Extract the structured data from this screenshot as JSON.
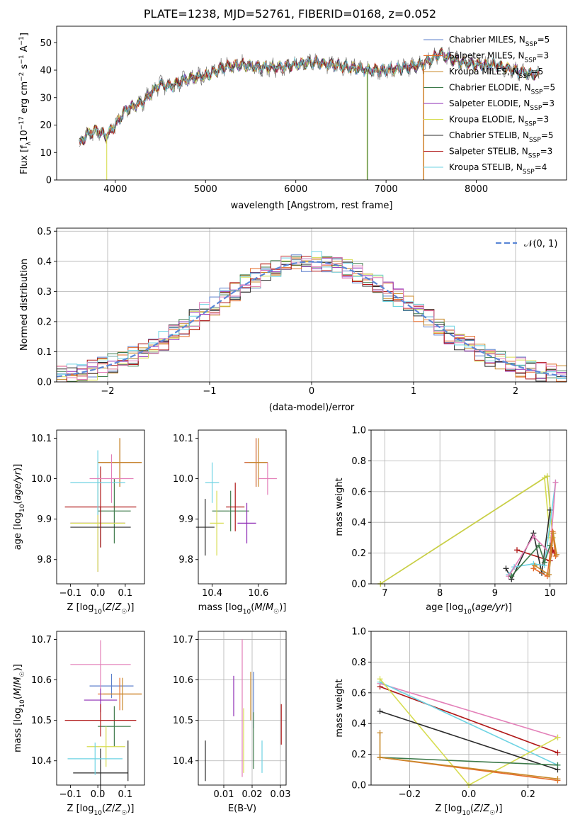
{
  "figure": {
    "title": "PLATE=1238, MJD=52761, FIBERID=0168, z=0.052"
  },
  "chart_data": [
    {
      "id": "spectrum",
      "type": "line",
      "xlabel": "wavelength [Angstrom, rest frame]",
      "ylabel_parts": [
        "Flux [f",
        "λ",
        "10",
        "−17",
        " erg cm",
        "−2",
        " s",
        "−1",
        " A",
        "−1",
        "]"
      ],
      "xlim": [
        3350,
        9000
      ],
      "ylim": [
        0,
        56
      ],
      "xticks": [
        4000,
        5000,
        6000,
        7000,
        8000
      ],
      "yticks": [
        0,
        10,
        20,
        30,
        40,
        50
      ],
      "legend_position": "top-right",
      "spectrum_anchors": [
        [
          3600,
          13
        ],
        [
          3700,
          17
        ],
        [
          3800,
          18
        ],
        [
          3900,
          16
        ],
        [
          4000,
          20
        ],
        [
          4100,
          25
        ],
        [
          4200,
          27
        ],
        [
          4300,
          28
        ],
        [
          4400,
          32
        ],
        [
          4500,
          35
        ],
        [
          4600,
          34
        ],
        [
          4800,
          37
        ],
        [
          5000,
          38
        ],
        [
          5200,
          41
        ],
        [
          5400,
          42
        ],
        [
          5600,
          41
        ],
        [
          5800,
          41
        ],
        [
          6000,
          42
        ],
        [
          6200,
          43
        ],
        [
          6400,
          42
        ],
        [
          6600,
          41
        ],
        [
          6800,
          40
        ],
        [
          7000,
          40
        ],
        [
          7200,
          41
        ],
        [
          7400,
          42
        ],
        [
          7600,
          46
        ],
        [
          7800,
          43
        ],
        [
          8000,
          42
        ],
        [
          8200,
          42
        ],
        [
          8400,
          40
        ],
        [
          8700,
          38
        ]
      ],
      "series": [
        {
          "name": "Chabrier MILES, N",
          "sub": "SSP",
          "suffix": "=5",
          "color": "#5b7fcb"
        },
        {
          "name": "Salpeter MILES, N",
          "sub": "SSP",
          "suffix": "=3",
          "color": "#e56c2b"
        },
        {
          "name": "Kroupa MILES, N",
          "sub": "SSP",
          "suffix": "=5",
          "color": "#c8892a"
        },
        {
          "name": "Chabrier ELODIE, N",
          "sub": "SSP",
          "suffix": "=5",
          "color": "#3d7a4a"
        },
        {
          "name": "Salpeter ELODIE, N",
          "sub": "SSP",
          "suffix": "=3",
          "color": "#8e2bb5"
        },
        {
          "name": "Kroupa ELODIE, N",
          "sub": "SSP",
          "suffix": "=3",
          "color": "#d7dd52"
        },
        {
          "name": "Chabrier STELIB, N",
          "sub": "SSP",
          "suffix": "=5",
          "color": "#2b2b2b"
        },
        {
          "name": "Salpeter STELIB, N",
          "sub": "SSP",
          "suffix": "=3",
          "color": "#b01818"
        },
        {
          "name": "Kroupa STELIB, N",
          "sub": "SSP",
          "suffix": "=4",
          "color": "#6dd3e3"
        }
      ]
    },
    {
      "id": "residuals",
      "type": "histogram",
      "xlabel": "(data-model)/error",
      "ylabel": "Normed distribution",
      "xlim": [
        -2.5,
        2.5
      ],
      "ylim": [
        0,
        0.51
      ],
      "xticks": [
        -2,
        -1,
        0,
        1,
        2
      ],
      "yticks": [
        0.0,
        0.1,
        0.2,
        0.3,
        0.4,
        0.5
      ],
      "grid": true,
      "bin_width": 0.1,
      "reference_curve": {
        "name": "𝒩(0, 1)",
        "mean": 0,
        "sigma": 1,
        "color": "#5b87d6",
        "style": "dashed"
      },
      "legend_position": "top-right",
      "series_colors": [
        "#5b7fcb",
        "#e56c2b",
        "#c8892a",
        "#3d7a4a",
        "#8e2bb5",
        "#d7dd52",
        "#2b2b2b",
        "#b01818",
        "#6dd3e3",
        "#e37fb8"
      ]
    },
    {
      "id": "age-vs-Z",
      "type": "scatter",
      "style": "crosshair-errorbars",
      "xlabel": "Z [log10(Z/Z☉)]",
      "ylabel": "age  [log10(age/yr)]",
      "xlim": [
        -0.15,
        0.17
      ],
      "ylim": [
        9.74,
        10.12
      ],
      "xticks": [
        -0.1,
        0.0,
        0.1
      ],
      "yticks": [
        9.8,
        9.9,
        10.0,
        10.1
      ],
      "points": [
        {
          "x": 0.08,
          "y": 10.04,
          "xerr": 0.08,
          "yerr": 0.06,
          "color": "#5b7fcb"
        },
        {
          "x": 0.08,
          "y": 10.04,
          "xerr": 0.08,
          "yerr": 0.06,
          "color": "#e56c2b"
        },
        {
          "x": 0.08,
          "y": 10.04,
          "xerr": 0.08,
          "yerr": 0.06,
          "color": "#c8892a"
        },
        {
          "x": 0.06,
          "y": 9.92,
          "xerr": 0.06,
          "yerr": 0.08,
          "color": "#3d7a4a"
        },
        {
          "x": 0.0,
          "y": 9.89,
          "xerr": 0.1,
          "yerr": 0.12,
          "color": "#8e2bb5"
        },
        {
          "x": 0.0,
          "y": 9.89,
          "xerr": 0.1,
          "yerr": 0.12,
          "color": "#d7dd52"
        },
        {
          "x": 0.01,
          "y": 9.88,
          "xerr": 0.11,
          "yerr": 0.05,
          "color": "#2b2b2b"
        },
        {
          "x": 0.01,
          "y": 9.93,
          "xerr": 0.13,
          "yerr": 0.1,
          "color": "#b01818"
        },
        {
          "x": 0.0,
          "y": 9.99,
          "xerr": 0.1,
          "yerr": 0.08,
          "color": "#6dd3e3"
        },
        {
          "x": 0.05,
          "y": 10.0,
          "xerr": 0.08,
          "yerr": 0.06,
          "color": "#e37fb8"
        }
      ]
    },
    {
      "id": "age-vs-mass",
      "type": "scatter",
      "style": "crosshair-errorbars",
      "xlabel": "mass [log10(M/M☉)]",
      "xlim": [
        10.34,
        10.72
      ],
      "ylim": [
        9.74,
        10.12
      ],
      "xticks": [
        10.4,
        10.6
      ],
      "yticks": [
        9.8,
        9.9,
        10.0,
        10.1
      ],
      "points": [
        {
          "x": 10.59,
          "y": 10.04,
          "xerr": 0.05,
          "yerr": 0.06,
          "color": "#5b7fcb"
        },
        {
          "x": 10.59,
          "y": 10.04,
          "xerr": 0.05,
          "yerr": 0.06,
          "color": "#e56c2b"
        },
        {
          "x": 10.6,
          "y": 10.04,
          "xerr": 0.04,
          "yerr": 0.06,
          "color": "#c8892a"
        },
        {
          "x": 10.48,
          "y": 9.92,
          "xerr": 0.08,
          "yerr": 0.05,
          "color": "#3d7a4a"
        },
        {
          "x": 10.55,
          "y": 9.89,
          "xerr": 0.04,
          "yerr": 0.05,
          "color": "#8e2bb5"
        },
        {
          "x": 10.42,
          "y": 9.89,
          "xerr": 0.03,
          "yerr": 0.08,
          "color": "#d7dd52"
        },
        {
          "x": 10.37,
          "y": 9.88,
          "xerr": 0.04,
          "yerr": 0.07,
          "color": "#2b2b2b"
        },
        {
          "x": 10.5,
          "y": 9.93,
          "xerr": 0.04,
          "yerr": 0.06,
          "color": "#b01818"
        },
        {
          "x": 10.4,
          "y": 9.99,
          "xerr": 0.03,
          "yerr": 0.05,
          "color": "#6dd3e3"
        },
        {
          "x": 10.64,
          "y": 10.0,
          "xerr": 0.04,
          "yerr": 0.04,
          "color": "#e37fb8"
        }
      ]
    },
    {
      "id": "massweight-vs-age",
      "type": "line",
      "markers": "plus",
      "xlabel": "age  [log10(age/yr)]",
      "ylabel": "mass weight",
      "xlim": [
        6.75,
        10.3
      ],
      "ylim": [
        0,
        1
      ],
      "xticks": [
        7,
        8,
        9,
        10
      ],
      "yticks": [
        0.0,
        0.2,
        0.4,
        0.6,
        0.8,
        1.0
      ],
      "grid": true,
      "series": [
        {
          "color": "#d7dd52",
          "points": [
            [
              6.92,
              0.0
            ],
            [
              9.9,
              0.69
            ],
            [
              10.0,
              0.3
            ]
          ]
        },
        {
          "color": "#c8ce48",
          "points": [
            [
              6.92,
              0.0
            ],
            [
              9.95,
              0.7
            ],
            [
              10.05,
              0.3
            ]
          ]
        },
        {
          "color": "#b01818",
          "points": [
            [
              9.4,
              0.22
            ],
            [
              10.0,
              0.15
            ],
            [
              10.05,
              0.22
            ],
            [
              10.08,
              0.2
            ]
          ]
        },
        {
          "color": "#2b2b2b",
          "points": [
            [
              9.2,
              0.1
            ],
            [
              9.3,
              0.03
            ],
            [
              9.7,
              0.33
            ],
            [
              9.85,
              0.07
            ],
            [
              10.0,
              0.48
            ]
          ]
        },
        {
          "color": "#6dd3e3",
          "points": [
            [
              9.25,
              0.06
            ],
            [
              9.35,
              0.11
            ],
            [
              9.7,
              0.13
            ],
            [
              9.9,
              0.12
            ],
            [
              10.1,
              0.66
            ]
          ]
        },
        {
          "color": "#e37fb8",
          "points": [
            [
              9.25,
              0.05
            ],
            [
              9.7,
              0.31
            ],
            [
              10.0,
              0.2
            ],
            [
              10.1,
              0.66
            ]
          ]
        },
        {
          "color": "#3d7a4a",
          "points": [
            [
              9.3,
              0.05
            ],
            [
              9.8,
              0.25
            ],
            [
              9.9,
              0.14
            ],
            [
              10.0,
              0.25
            ]
          ]
        },
        {
          "color": "#e56c2b",
          "points": [
            [
              9.7,
              0.1
            ],
            [
              9.95,
              0.05
            ],
            [
              10.05,
              0.34
            ],
            [
              10.1,
              0.18
            ]
          ]
        },
        {
          "color": "#c8892a",
          "points": [
            [
              9.72,
              0.12
            ],
            [
              9.98,
              0.06
            ],
            [
              10.06,
              0.33
            ],
            [
              10.12,
              0.19
            ]
          ]
        }
      ]
    },
    {
      "id": "mass-vs-Z",
      "type": "scatter",
      "style": "crosshair-errorbars",
      "xlabel": "Z [log10(Z/Z☉)]",
      "ylabel": "mass [log10(M/M☉)]",
      "xlim": [
        -0.15,
        0.17
      ],
      "ylim": [
        10.34,
        10.72
      ],
      "xticks": [
        -0.1,
        0.0,
        0.1
      ],
      "yticks": [
        10.4,
        10.5,
        10.6,
        10.7
      ],
      "points": [
        {
          "x": 0.05,
          "y": 10.585,
          "xerr": 0.08,
          "yerr": 0.03,
          "color": "#5b7fcb"
        },
        {
          "x": 0.08,
          "y": 10.565,
          "xerr": 0.08,
          "yerr": 0.04,
          "color": "#e56c2b"
        },
        {
          "x": 0.09,
          "y": 10.565,
          "xerr": 0.07,
          "yerr": 0.04,
          "color": "#c8892a"
        },
        {
          "x": 0.06,
          "y": 10.485,
          "xerr": 0.06,
          "yerr": 0.05,
          "color": "#3d7a4a"
        },
        {
          "x": 0.01,
          "y": 10.55,
          "xerr": 0.06,
          "yerr": 0.03,
          "color": "#8e2bb5"
        },
        {
          "x": 0.03,
          "y": 10.435,
          "xerr": 0.07,
          "yerr": 0.05,
          "color": "#d7dd52"
        },
        {
          "x": 0.01,
          "y": 10.37,
          "xerr": 0.1,
          "yerr": 0.06,
          "color": "#2b2b2b"
        },
        {
          "x": 0.01,
          "y": 10.5,
          "xerr": 0.13,
          "yerr": 0.04,
          "color": "#b01818"
        },
        {
          "x": -0.01,
          "y": 10.405,
          "xerr": 0.1,
          "yerr": 0.04,
          "color": "#6dd3e3"
        },
        {
          "x": 0.01,
          "y": 10.638,
          "xerr": 0.11,
          "yerr": 0.06,
          "color": "#e37fb8"
        },
        {
          "x": 0.11,
          "y": 10.4,
          "xerr": 0.0,
          "yerr": 0.05,
          "color": "#2b2b2b"
        }
      ]
    },
    {
      "id": "mass-vs-EBV",
      "type": "scatter",
      "style": "vertical-errorbars",
      "xlabel": "E(B-V)",
      "xlim": [
        0.001,
        0.032
      ],
      "ylim": [
        10.34,
        10.72
      ],
      "xticks": [
        0.01,
        0.02,
        0.03
      ],
      "yticks": [
        10.4,
        10.5,
        10.6,
        10.7
      ],
      "points": [
        {
          "x": 0.0035,
          "y": 10.4,
          "yerr": 0.05,
          "color": "#2b2b2b"
        },
        {
          "x": 0.0135,
          "y": 10.56,
          "yerr": 0.05,
          "color": "#8e2bb5"
        },
        {
          "x": 0.0165,
          "y": 10.53,
          "yerr": 0.17,
          "color": "#e37fb8"
        },
        {
          "x": 0.017,
          "y": 10.45,
          "yerr": 0.08,
          "color": "#d7dd52"
        },
        {
          "x": 0.0195,
          "y": 10.56,
          "yerr": 0.06,
          "color": "#c8892a"
        },
        {
          "x": 0.0205,
          "y": 10.55,
          "yerr": 0.07,
          "color": "#5b7fcb"
        },
        {
          "x": 0.0205,
          "y": 10.45,
          "yerr": 0.07,
          "color": "#3d7a4a"
        },
        {
          "x": 0.0235,
          "y": 10.41,
          "yerr": 0.04,
          "color": "#6dd3e3"
        },
        {
          "x": 0.0303,
          "y": 10.49,
          "yerr": 0.05,
          "color": "#b01818"
        }
      ]
    },
    {
      "id": "massweight-vs-Z",
      "type": "line",
      "markers": "plus",
      "xlabel": "Z [log10(Z/Z☉)]",
      "ylabel": "mass weight",
      "xlim": [
        -0.33,
        0.33
      ],
      "ylim": [
        0,
        1
      ],
      "xticks": [
        -0.2,
        0.0,
        0.2
      ],
      "yticks": [
        0.0,
        0.2,
        0.4,
        0.6,
        0.8,
        1.0
      ],
      "grid": true,
      "series": [
        {
          "color": "#e37fb8",
          "points": [
            [
              -0.3,
              0.66
            ],
            [
              0.3,
              0.31
            ]
          ]
        },
        {
          "color": "#b01818",
          "points": [
            [
              -0.3,
              0.64
            ],
            [
              0.3,
              0.21
            ]
          ]
        },
        {
          "color": "#6dd3e3",
          "points": [
            [
              -0.3,
              0.67
            ],
            [
              0.3,
              0.13
            ]
          ]
        },
        {
          "color": "#d7dd52",
          "points": [
            [
              -0.3,
              0.69
            ],
            [
              0.0,
              0.0
            ],
            [
              0.3,
              0.31
            ]
          ]
        },
        {
          "color": "#2b2b2b",
          "points": [
            [
              -0.3,
              0.48
            ],
            [
              0.3,
              0.1
            ]
          ]
        },
        {
          "color": "#3d7a4a",
          "points": [
            [
              -0.3,
              0.18
            ],
            [
              0.3,
              0.13
            ]
          ]
        },
        {
          "color": "#e56c2b",
          "points": [
            [
              -0.3,
              0.18
            ],
            [
              0.3,
              0.03
            ]
          ]
        },
        {
          "color": "#c8892a",
          "points": [
            [
              -0.3,
              0.34
            ],
            [
              -0.3,
              0.18
            ],
            [
              0.3,
              0.04
            ]
          ]
        }
      ]
    }
  ]
}
